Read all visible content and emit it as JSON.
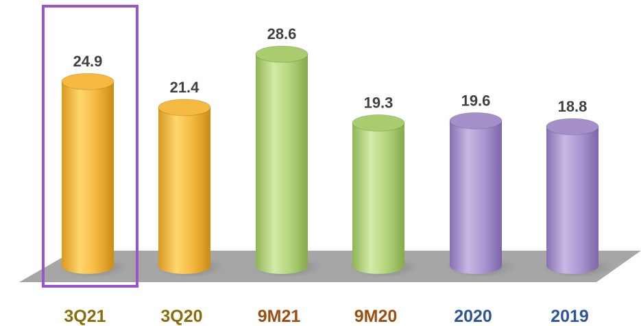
{
  "chart_data": {
    "type": "bar",
    "style": "3d-cylinder",
    "categories": [
      "3Q21",
      "3Q20",
      "9M21",
      "9M20",
      "2020",
      "2019"
    ],
    "values": [
      24.9,
      21.4,
      28.6,
      19.3,
      19.6,
      18.8
    ],
    "data_labels": [
      "24.9",
      "21.4",
      "28.6",
      "19.3",
      "19.6",
      "18.8"
    ],
    "title": "",
    "xlabel": "",
    "ylabel": "",
    "ylim": [
      0,
      32
    ],
    "grid": false,
    "legend": "none",
    "highlighted_category": "3Q21",
    "colors": {
      "quarter_bars": "#f5b942",
      "nine_month_bars": "#a9cd6e",
      "annual_bars": "#a48fc9",
      "quarter_labels": "#8a6d0b",
      "nine_month_labels": "#9c4f12",
      "annual_labels": "#2f5597",
      "highlight_box": "#9955cc",
      "floor": "#a6a6a6",
      "value_labels": "#404040"
    }
  }
}
